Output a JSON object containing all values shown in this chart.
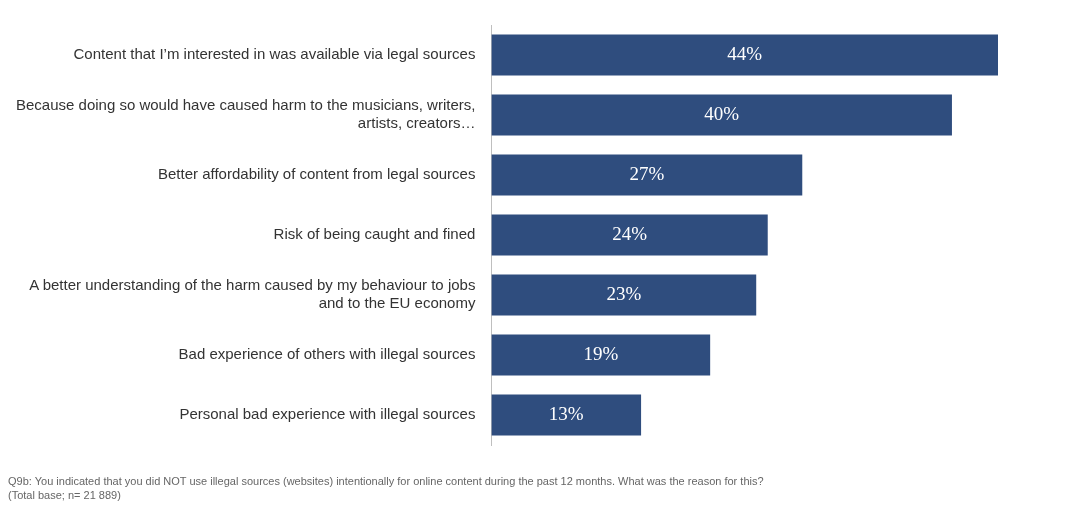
{
  "chart_data": {
    "type": "bar",
    "orientation": "horizontal",
    "categories": [
      "Content that I’m interested in was available via legal sources",
      "Because doing so would have caused harm to the musicians, writers, artists, creators…",
      "Better affordability of content from legal sources",
      "Risk of being caught and fined",
      "A better understanding of the harm caused by my behaviour to jobs and to the EU economy",
      "Bad experience of others with illegal sources",
      "Personal bad experience with illegal sources"
    ],
    "values": [
      44,
      40,
      27,
      24,
      23,
      19,
      13
    ],
    "value_labels": [
      "44%",
      "40%",
      "27%",
      "24%",
      "23%",
      "19%",
      "13%"
    ],
    "color": "#2f4d7e",
    "xlim": [
      0,
      44
    ],
    "tick_labels": "y",
    "legend": false,
    "annotations": [
      "Q9b: You indicated that you did NOT use illegal sources (websites) intentionally for online content during the past 12 months. What was the reason for this?",
      "(Total base; n= 21 889)"
    ]
  }
}
